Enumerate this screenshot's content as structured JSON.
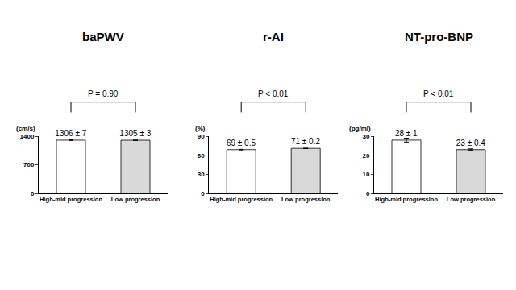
{
  "chart_data": [
    {
      "type": "bar",
      "title": "baPWV",
      "categories": [
        "High-mid progression",
        "Low progression"
      ],
      "values": [
        1306,
        1305
      ],
      "errors": [
        7,
        3
      ],
      "value_labels": [
        "1306 ± 7",
        "1305 ± 3"
      ],
      "data_labels": true,
      "colors": [
        "#ffffff",
        "#d9d9d9"
      ],
      "ylim": [
        0,
        1400
      ],
      "yticks": [
        0,
        700,
        1400
      ],
      "ylabel": "(cm/s)",
      "annotations": [
        "P = 0.90"
      ],
      "grid": false
    },
    {
      "type": "bar",
      "title": "r-AI",
      "categories": [
        "High-mid progression",
        "Low progression"
      ],
      "values": [
        69,
        71
      ],
      "errors": [
        0.5,
        0.2
      ],
      "value_labels": [
        "69 ± 0.5",
        "71 ± 0.2"
      ],
      "data_labels": true,
      "colors": [
        "#ffffff",
        "#d9d9d9"
      ],
      "ylim": [
        0,
        90
      ],
      "yticks": [
        0,
        30,
        60,
        90
      ],
      "ylabel": "(%)",
      "annotations": [
        "P < 0.01"
      ],
      "grid": false
    },
    {
      "type": "bar",
      "title": "NT-pro-BNP",
      "categories": [
        "High-mid progression",
        "Low progression"
      ],
      "values": [
        28,
        23
      ],
      "errors": [
        1,
        0.4
      ],
      "value_labels": [
        "28 ± 1",
        "23 ± 0.4"
      ],
      "data_labels": true,
      "colors": [
        "#ffffff",
        "#d9d9d9"
      ],
      "ylim": [
        0,
        30
      ],
      "yticks": [
        0,
        10,
        20,
        30
      ],
      "ylabel": "(pg/ml)",
      "annotations": [
        "P < 0.01"
      ],
      "grid": false
    }
  ]
}
